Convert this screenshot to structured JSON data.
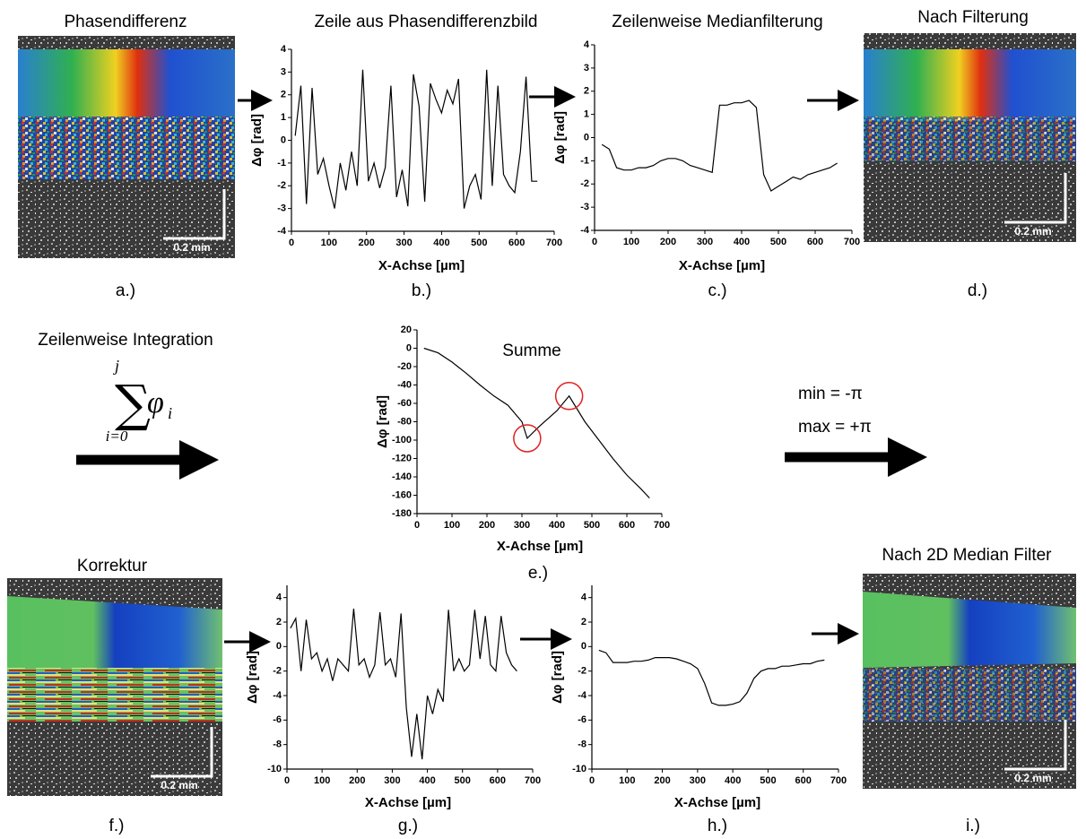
{
  "panels": [
    {
      "title": "Phasendifferenz",
      "label": "a.)",
      "scale": "0.2 mm"
    },
    {
      "title": "Nach Filterung",
      "label": "d.)",
      "scale": "0.2 mm"
    },
    {
      "title": "Korrektur",
      "label": "f.)",
      "scale": "0.2 mm"
    },
    {
      "title": "Nach 2D Median Filter",
      "label": "i.)",
      "scale": "0.2 mm"
    }
  ],
  "integration": {
    "title": "Zeilenweise Integration",
    "symbol": "∑",
    "upper": "j",
    "lower": "i=0",
    "term": "φ",
    "index": "i"
  },
  "limits": [
    "min  = -π",
    "max = +π"
  ],
  "chart_data": [
    {
      "type": "line",
      "title": "Zeile aus Phasendifferenzbild",
      "label": "b.)",
      "xlabel": "X-Achse [µm]",
      "ylabel": "Δφ [rad]",
      "color": "#000000",
      "x": [
        10,
        25,
        40,
        55,
        70,
        85,
        100,
        115,
        130,
        145,
        160,
        175,
        190,
        205,
        220,
        235,
        250,
        265,
        280,
        295,
        310,
        325,
        340,
        355,
        370,
        385,
        400,
        415,
        430,
        445,
        460,
        475,
        490,
        505,
        520,
        535,
        550,
        565,
        580,
        595,
        610,
        625,
        640,
        655
      ],
      "values": [
        0.2,
        2.4,
        -2.8,
        2.3,
        -1.5,
        -0.8,
        -2.0,
        -3.0,
        -1.0,
        -2.2,
        -0.5,
        -2.0,
        3.1,
        -1.8,
        -1.0,
        -2.1,
        -1.2,
        2.4,
        -2.5,
        -1.3,
        -2.9,
        2.9,
        1.5,
        -2.7,
        2.5,
        1.8,
        1.2,
        2.2,
        1.6,
        2.7,
        -3.0,
        -2.0,
        -1.5,
        -2.6,
        3.1,
        -2.0,
        2.4,
        -1.5,
        -2.0,
        -2.3,
        -0.5,
        2.8,
        -1.8,
        -1.8
      ],
      "xlim": [
        0,
        700
      ],
      "xticks": [
        0,
        100,
        200,
        300,
        400,
        500,
        600,
        700
      ],
      "ylim": [
        -4,
        4
      ],
      "yticks": [
        -4,
        -3,
        -2,
        -1,
        0,
        1,
        2,
        3,
        4
      ]
    },
    {
      "type": "line",
      "title": "Zeilenweise Medianfilterung",
      "label": "c.)",
      "xlabel": "X-Achse [µm]",
      "ylabel": "Δφ [rad]",
      "color": "#000000",
      "x": [
        20,
        40,
        60,
        80,
        100,
        120,
        140,
        160,
        180,
        200,
        220,
        240,
        260,
        280,
        300,
        320,
        340,
        360,
        380,
        400,
        420,
        440,
        460,
        480,
        500,
        520,
        540,
        560,
        580,
        600,
        620,
        640,
        660
      ],
      "values": [
        -0.3,
        -0.5,
        -1.3,
        -1.4,
        -1.4,
        -1.3,
        -1.3,
        -1.2,
        -1.0,
        -0.9,
        -0.9,
        -1.0,
        -1.2,
        -1.3,
        -1.4,
        -1.5,
        1.4,
        1.4,
        1.5,
        1.5,
        1.6,
        1.3,
        -1.6,
        -2.3,
        -2.1,
        -1.9,
        -1.7,
        -1.8,
        -1.6,
        -1.5,
        -1.4,
        -1.3,
        -1.1
      ],
      "xlim": [
        0,
        700
      ],
      "xticks": [
        0,
        100,
        200,
        300,
        400,
        500,
        600,
        700
      ],
      "ylim": [
        -4,
        4
      ],
      "yticks": [
        -4,
        -3,
        -2,
        -1,
        0,
        1,
        2,
        3,
        4
      ]
    },
    {
      "type": "line",
      "title": "Summe",
      "label": "e.)",
      "xlabel": "X-Achse [µm]",
      "ylabel": "Δφ [rad]",
      "color": "#000000",
      "highlight_color": "#e02020",
      "x": [
        20,
        60,
        100,
        140,
        180,
        220,
        260,
        300,
        315,
        350,
        400,
        435,
        480,
        520,
        560,
        600,
        640,
        665
      ],
      "values": [
        0,
        -5,
        -15,
        -27,
        -40,
        -52,
        -62,
        -80,
        -98,
        -85,
        -68,
        -52,
        -80,
        -100,
        -120,
        -138,
        -153,
        -163
      ],
      "xlim": [
        0,
        700
      ],
      "xticks": [
        0,
        100,
        200,
        300,
        400,
        500,
        600,
        700
      ],
      "ylim": [
        -180,
        20
      ],
      "yticks": [
        -180,
        -160,
        -140,
        -120,
        -100,
        -80,
        -60,
        -40,
        -20,
        0,
        20
      ]
    },
    {
      "type": "line",
      "label": "g.)",
      "xlabel": "X-Achse [µm]",
      "ylabel": "Δφ [rad]",
      "color": "#000000",
      "x": [
        10,
        25,
        40,
        55,
        70,
        85,
        100,
        115,
        130,
        145,
        160,
        175,
        190,
        205,
        220,
        235,
        250,
        265,
        280,
        295,
        310,
        325,
        340,
        355,
        370,
        385,
        400,
        415,
        430,
        445,
        460,
        475,
        490,
        505,
        520,
        535,
        550,
        565,
        580,
        595,
        610,
        625,
        640,
        655
      ],
      "values": [
        1.5,
        2.3,
        -2.0,
        2.2,
        -1.0,
        -0.5,
        -2.0,
        -1.0,
        -2.8,
        -1.0,
        -1.5,
        -2.0,
        3.1,
        -1.5,
        -1.0,
        -2.5,
        -1.5,
        2.8,
        -1.5,
        -1.0,
        -2.5,
        2.7,
        -5.0,
        -9.0,
        -5.5,
        -9.2,
        -4.0,
        -5.5,
        -3.5,
        -4.5,
        3.0,
        -2.0,
        -1.0,
        -2.0,
        -1.5,
        3.0,
        -1.0,
        2.5,
        -1.5,
        -2.0,
        2.5,
        -0.5,
        -1.5,
        -2.0
      ],
      "xlim": [
        0,
        700
      ],
      "xticks": [
        0,
        100,
        200,
        300,
        400,
        500,
        600,
        700
      ],
      "ylim": [
        -10,
        5
      ],
      "yticks": [
        -10,
        -8,
        -6,
        -4,
        -2,
        0,
        2,
        4
      ]
    },
    {
      "type": "line",
      "label": "h.)",
      "xlabel": "X-Achse [µm]",
      "ylabel": "Δφ [rad]",
      "color": "#000000",
      "x": [
        20,
        40,
        60,
        80,
        100,
        120,
        140,
        160,
        180,
        200,
        220,
        240,
        260,
        280,
        300,
        320,
        340,
        360,
        380,
        400,
        420,
        440,
        460,
        480,
        500,
        520,
        540,
        560,
        580,
        600,
        620,
        640,
        660
      ],
      "values": [
        -0.3,
        -0.5,
        -1.3,
        -1.3,
        -1.3,
        -1.2,
        -1.2,
        -1.1,
        -0.9,
        -0.9,
        -0.9,
        -1.0,
        -1.2,
        -1.4,
        -1.8,
        -3.0,
        -4.6,
        -4.8,
        -4.8,
        -4.7,
        -4.5,
        -3.8,
        -2.6,
        -2.0,
        -1.8,
        -1.8,
        -1.6,
        -1.6,
        -1.5,
        -1.4,
        -1.4,
        -1.2,
        -1.1
      ],
      "xlim": [
        0,
        700
      ],
      "xticks": [
        0,
        100,
        200,
        300,
        400,
        500,
        600,
        700
      ],
      "ylim": [
        -10,
        5
      ],
      "yticks": [
        -10,
        -8,
        -6,
        -4,
        -2,
        0,
        2,
        4
      ]
    }
  ]
}
